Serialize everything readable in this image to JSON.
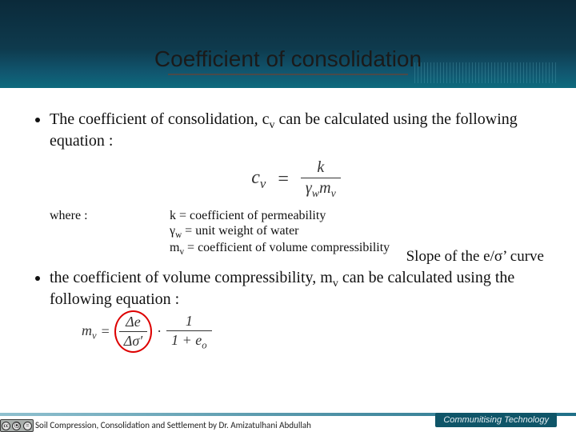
{
  "header": {
    "title": "Coefficient of consolidation",
    "bg_gradient": [
      "#0b2a3a",
      "#0e3a4d",
      "#11566f",
      "#0d6a7d"
    ]
  },
  "bullets": {
    "b1_pre": "The coefficient of consolidation, c",
    "b1_sub": "v",
    "b1_post": " can be calculated using the following equation :",
    "b2_pre": "the coefficient of volume compressibility, m",
    "b2_sub": "v",
    "b2_post": " can be calculated using the following equation :"
  },
  "eq1": {
    "lhs_var": "c",
    "lhs_sub": "v",
    "num_var": "k",
    "den_g": "γ",
    "den_g_sub": "w",
    "den_m": "m",
    "den_m_sub": "v"
  },
  "defs": {
    "label": "where :",
    "l1": "k = coefficient of permeability",
    "l2_sym": "γ",
    "l2_sub": "w",
    "l2_rest": " = unit weight of water",
    "l3_sym": "m",
    "l3_sub": "v",
    "l3_rest": " = coefficient of volume compressibility"
  },
  "eq2": {
    "lhs_var": "m",
    "lhs_sub": "v",
    "num1": "Δe",
    "den1": "Δσ′",
    "num2": "1",
    "den2_pre": "1 + e",
    "den2_sub": "o"
  },
  "slope": {
    "text_pre": "Slope of the e/σ",
    "text_post": "’ curve"
  },
  "footer": {
    "badge": "Communitising Technology",
    "credit": "Soil Compression, Consolidation and Settlement by Dr. Amizatulhani Abdullah"
  }
}
